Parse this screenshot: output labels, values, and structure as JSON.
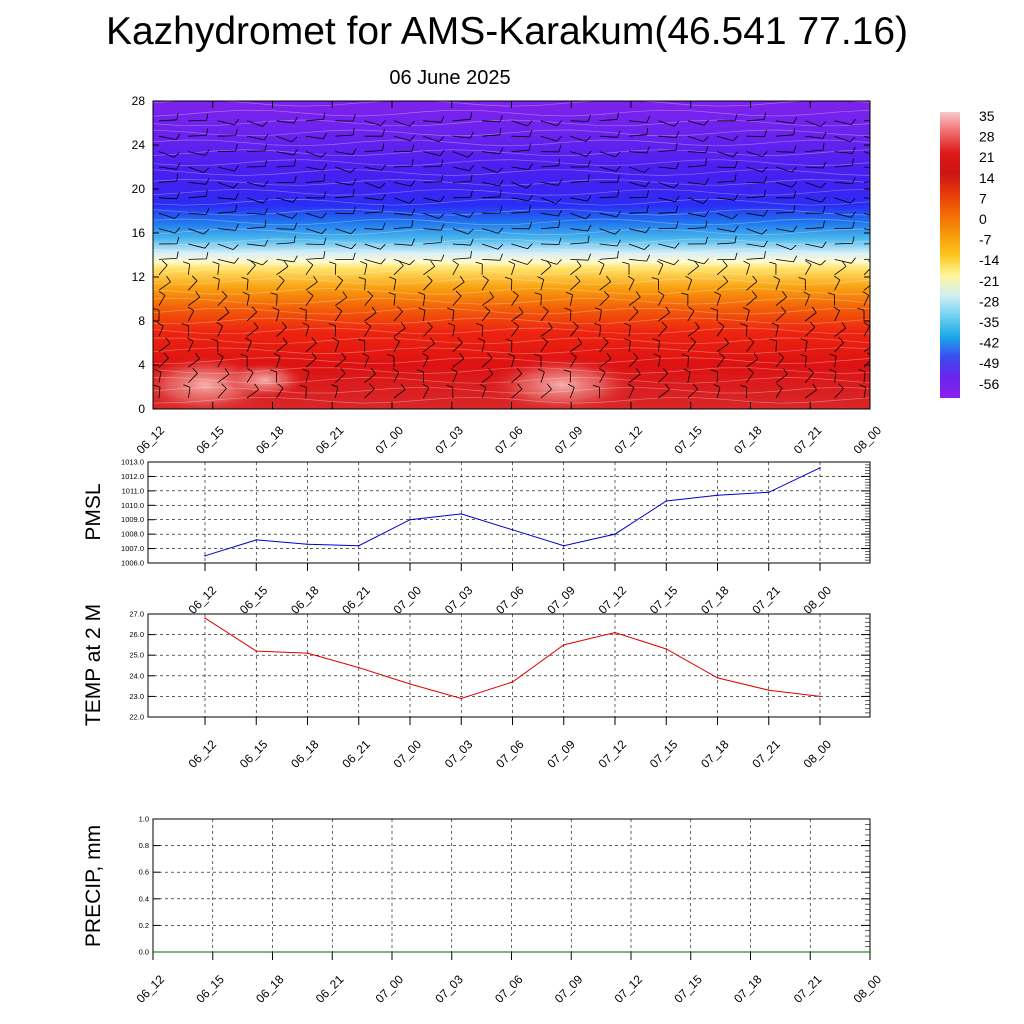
{
  "title": "Kazhydromet for AMS-Karakum(46.541 77.16)",
  "subtitle": "06 June 2025",
  "colors": {
    "pmsl_line": "#0000cc",
    "temp_line": "#e00000",
    "precip_line": "#006400",
    "grid": "#000000"
  },
  "chart_data": [
    {
      "type": "heatmap",
      "name": "upper-air-temperature-wind",
      "x_tick_labels": [
        "06_12",
        "06_15",
        "06_18",
        "06_21",
        "07_00",
        "07_03",
        "07_06",
        "07_09",
        "07_12",
        "07_15",
        "07_18",
        "07_21",
        "08_00"
      ],
      "y_ticks": [
        0,
        4,
        8,
        12,
        16,
        20,
        24,
        28
      ],
      "ylim": [
        0,
        28
      ],
      "colorbar_labels": [
        "35",
        "28",
        "21",
        "14",
        "7",
        "0",
        "-7",
        "-14",
        "-21",
        "-28",
        "-35",
        "-42",
        "-49",
        "-56"
      ],
      "colorbar_colors": [
        "#f7c9c9",
        "#f06a6a",
        "#e01818",
        "#cc1414",
        "#e83a0a",
        "#f26a06",
        "#f79a08",
        "#fbc61c",
        "#fff59a",
        "#cfeef4",
        "#6fd0ef",
        "#1ba9ea",
        "#3b4cf0",
        "#6a24ee",
        "#8a22ea"
      ],
      "vertical_profile": [
        {
          "h": 0,
          "c": "#d8282a"
        },
        {
          "h": 4,
          "c": "#dd1212"
        },
        {
          "h": 7,
          "c": "#ee2410"
        },
        {
          "h": 9,
          "c": "#f25a08"
        },
        {
          "h": 11,
          "c": "#f9a010"
        },
        {
          "h": 12.8,
          "c": "#ffe36a"
        },
        {
          "h": 13.4,
          "c": "#fffbd0"
        },
        {
          "h": 14.2,
          "c": "#d4eef8"
        },
        {
          "h": 15.5,
          "c": "#48b6ec"
        },
        {
          "h": 17,
          "c": "#1f74ee"
        },
        {
          "h": 18.5,
          "c": "#2a2ef4"
        },
        {
          "h": 20,
          "c": "#3e22f2"
        },
        {
          "h": 22,
          "c": "#4d1ff0"
        },
        {
          "h": 25,
          "c": "#6c22ee"
        },
        {
          "h": 28,
          "c": "#7e22ec"
        }
      ]
    },
    {
      "type": "line",
      "name": "PMSL",
      "ylabel": "PMSL",
      "x_tick_labels": [
        "06_12",
        "06_15",
        "06_18",
        "06_21",
        "07_00",
        "07_03",
        "07_06",
        "07_09",
        "07_12",
        "07_15",
        "07_18",
        "07_21",
        "08_00"
      ],
      "y_tick_labels": [
        "1013.0",
        "1012.0",
        "1011.0",
        "1010.0",
        "1009.0",
        "1008.0",
        "1007.0",
        "1006.0"
      ],
      "ylim": [
        1006.0,
        1013.0
      ],
      "values": [
        1006.5,
        1007.6,
        1007.3,
        1007.2,
        1009.0,
        1009.4,
        1008.3,
        1007.2,
        1008.0,
        1010.3,
        1010.7,
        1010.9,
        1012.6
      ]
    },
    {
      "type": "line",
      "name": "TEMP at 2 M",
      "ylabel": "TEMP at 2 M",
      "x_tick_labels": [
        "06_12",
        "06_15",
        "06_18",
        "06_21",
        "07_00",
        "07_03",
        "07_06",
        "07_09",
        "07_12",
        "07_15",
        "07_18",
        "07_21",
        "08_00"
      ],
      "y_tick_labels": [
        "27.0",
        "26.0",
        "25.0",
        "24.0",
        "23.0",
        "22.0"
      ],
      "ylim": [
        22.0,
        27.0
      ],
      "values": [
        26.8,
        25.2,
        25.1,
        24.4,
        23.6,
        22.9,
        23.7,
        25.5,
        26.1,
        25.3,
        23.9,
        23.3,
        23.0
      ]
    },
    {
      "type": "line",
      "name": "PRECIP, mm",
      "ylabel": "PRECIP, mm",
      "x_tick_labels": [
        "06_12",
        "06_15",
        "06_18",
        "06_21",
        "07_00",
        "07_03",
        "07_06",
        "07_09",
        "07_12",
        "07_15",
        "07_18",
        "07_21",
        "08_00"
      ],
      "y_tick_labels": [
        "1.0",
        "0.8",
        "0.6",
        "0.4",
        "0.2",
        "0.0"
      ],
      "ylim": [
        0.0,
        1.0
      ],
      "values": [
        0,
        0,
        0,
        0,
        0,
        0,
        0,
        0,
        0,
        0,
        0,
        0,
        0
      ]
    }
  ]
}
